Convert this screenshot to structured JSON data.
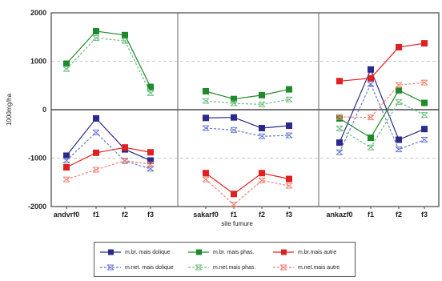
{
  "chart_data": {
    "type": "line",
    "ylabel": "1000mg/ha",
    "xlabel": "site fumure",
    "ylim": [
      -2000,
      2000
    ],
    "yticks": [
      2000,
      1000,
      0,
      -1000,
      -2000
    ],
    "grid": "horizontal dashed",
    "legend_position": "bottom",
    "groups": [
      {
        "name": "andvrf0",
        "categories": [
          "andvrf0",
          "f1",
          "f2",
          "f3"
        ]
      },
      {
        "name": "sakarf0",
        "categories": [
          "sakarf0",
          "f1",
          "f2",
          "f3"
        ]
      },
      {
        "name": "ankazf0",
        "categories": [
          "ankazf0",
          "f1",
          "f2",
          "f3"
        ]
      }
    ],
    "series": [
      {
        "name": "m.br. mais dolique",
        "color": "#2a2a8a",
        "marker": "square",
        "dashed": false,
        "values": [
          [
            -950,
            -180,
            -820,
            -1050
          ],
          [
            -170,
            -160,
            -380,
            -330
          ],
          [
            -680,
            830,
            -620,
            -400
          ]
        ]
      },
      {
        "name": "m.br. mais phas.",
        "color": "#1f8a2a",
        "marker": "square",
        "dashed": false,
        "values": [
          [
            950,
            1620,
            1540,
            470
          ],
          [
            380,
            220,
            300,
            420
          ],
          [
            -180,
            -580,
            400,
            140
          ]
        ]
      },
      {
        "name": "m.br.mais autre",
        "color": "#e02020",
        "marker": "square",
        "dashed": false,
        "values": [
          [
            -1190,
            -890,
            -780,
            -880
          ],
          [
            -1310,
            -1740,
            -1310,
            -1430
          ],
          [
            590,
            650,
            1290,
            1370
          ]
        ]
      },
      {
        "name": "m.net. mais dolique",
        "color": "#6a7ad0",
        "marker": "x",
        "dashed": true,
        "values": [
          [
            -1050,
            -470,
            -1060,
            -1220
          ],
          [
            -380,
            -420,
            -550,
            -530
          ],
          [
            -880,
            530,
            -820,
            -620
          ]
        ]
      },
      {
        "name": "m.net.mais phas.",
        "color": "#6fc080",
        "marker": "x",
        "dashed": true,
        "values": [
          [
            840,
            1480,
            1420,
            340
          ],
          [
            180,
            130,
            110,
            210
          ],
          [
            -390,
            -780,
            160,
            -110
          ]
        ]
      },
      {
        "name": "m.net.mais autre",
        "color": "#f28070",
        "marker": "x",
        "dashed": true,
        "values": [
          [
            -1440,
            -1240,
            -1050,
            -1130
          ],
          [
            -1440,
            -1960,
            -1460,
            -1570
          ],
          [
            -150,
            -160,
            510,
            560
          ]
        ]
      }
    ]
  }
}
